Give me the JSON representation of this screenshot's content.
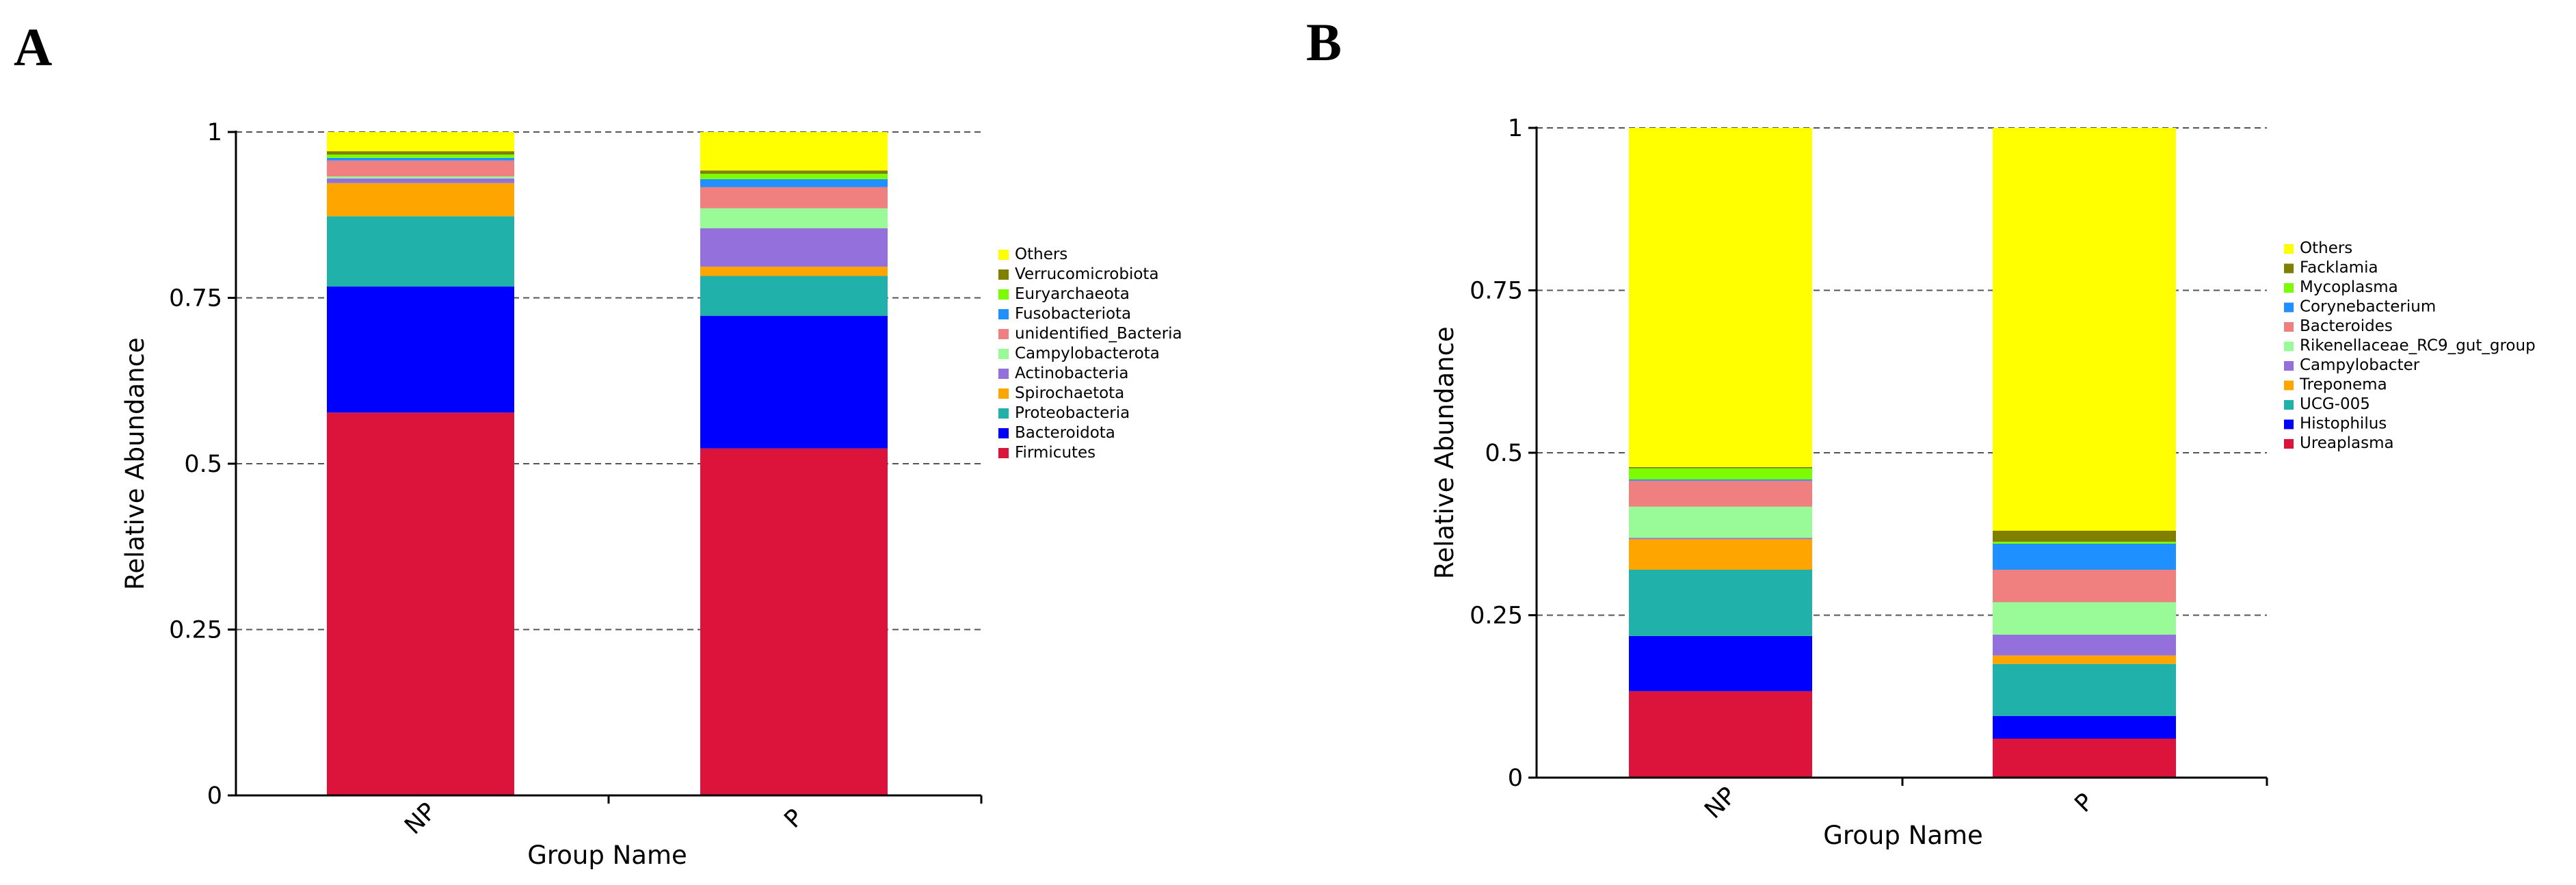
{
  "chart_data": [
    {
      "panel_label": "A",
      "type": "bar",
      "stacked": true,
      "categories": [
        "NP",
        "P"
      ],
      "xlabel": "Group Name",
      "ylabel": "Relative Abundance",
      "ylim": [
        0,
        1
      ],
      "yticks": [
        "0",
        "0.25",
        "0.5",
        "0.75",
        "1"
      ],
      "grid": "dashed horizontal at y ticks",
      "legend_position": "right",
      "series": [
        {
          "name": "Firmicutes",
          "color": "#DC143C",
          "values": [
            0.577,
            0.523
          ]
        },
        {
          "name": "Bacteroidota",
          "color": "#0000FF",
          "values": [
            0.19,
            0.2
          ]
        },
        {
          "name": "Proteobacteria",
          "color": "#20B2AA",
          "values": [
            0.106,
            0.06
          ]
        },
        {
          "name": "Spirochaetota",
          "color": "#FFA500",
          "values": [
            0.05,
            0.014
          ]
        },
        {
          "name": "Actinobacteria",
          "color": "#9370DB",
          "values": [
            0.007,
            0.058
          ]
        },
        {
          "name": "Campylobacterota",
          "color": "#98FB98",
          "values": [
            0.003,
            0.03
          ]
        },
        {
          "name": "unidentified_Bacteria",
          "color": "#F08080",
          "values": [
            0.024,
            0.032
          ]
        },
        {
          "name": "Fusobacteriota",
          "color": "#1E90FF",
          "values": [
            0.004,
            0.012
          ]
        },
        {
          "name": "Euryarchaeota",
          "color": "#7CFC00",
          "values": [
            0.005,
            0.008
          ]
        },
        {
          "name": "Verrucomicrobiota",
          "color": "#808000",
          "values": [
            0.005,
            0.005
          ]
        },
        {
          "name": "Others",
          "color": "#FFFF00",
          "values": [
            0.029,
            0.058
          ]
        }
      ]
    },
    {
      "panel_label": "B",
      "type": "bar",
      "stacked": true,
      "categories": [
        "NP",
        "P"
      ],
      "xlabel": "Group Name",
      "ylabel": "Relative Abundance",
      "ylim": [
        0,
        1
      ],
      "yticks": [
        "0",
        "0.25",
        "0.5",
        "0.75",
        "1"
      ],
      "grid": "dashed horizontal at y ticks",
      "legend_position": "right",
      "series": [
        {
          "name": "Ureaplasma",
          "color": "#DC143C",
          "values": [
            0.133,
            0.06
          ]
        },
        {
          "name": "Histophilus",
          "color": "#0000FF",
          "values": [
            0.085,
            0.035
          ]
        },
        {
          "name": "UCG-005",
          "color": "#20B2AA",
          "values": [
            0.102,
            0.08
          ]
        },
        {
          "name": "Treponema",
          "color": "#FFA500",
          "values": [
            0.047,
            0.013
          ]
        },
        {
          "name": "Campylobacter",
          "color": "#9370DB",
          "values": [
            0.002,
            0.032
          ]
        },
        {
          "name": "Rikenellaceae_RC9_gut_group",
          "color": "#98FB98",
          "values": [
            0.048,
            0.05
          ]
        },
        {
          "name": "Bacteroides",
          "color": "#F08080",
          "values": [
            0.04,
            0.05
          ]
        },
        {
          "name": "Corynebacterium",
          "color": "#1E90FF",
          "values": [
            0.002,
            0.04
          ]
        },
        {
          "name": "Mycoplasma",
          "color": "#7CFC00",
          "values": [
            0.017,
            0.003
          ]
        },
        {
          "name": "Facklamia",
          "color": "#808000",
          "values": [
            0.002,
            0.017
          ]
        },
        {
          "name": "Others",
          "color": "#FFFF00",
          "values": [
            0.522,
            0.62
          ]
        }
      ]
    }
  ]
}
